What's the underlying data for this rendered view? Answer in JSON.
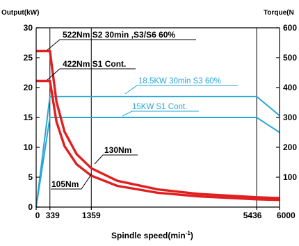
{
  "chart_data": {
    "type": "line",
    "y_left_title": "Output(kW)",
    "y_right_title": "Torque(N",
    "xlabel_main": "Spindle speed(min",
    "xlabel_sup": "-1",
    "xlabel_close": ")",
    "xlim": [
      0,
      6000
    ],
    "ylim_left": [
      0,
      30
    ],
    "ylim_right": [
      0,
      600
    ],
    "x_ticks": [
      {
        "value": 0,
        "label": "0"
      },
      {
        "value": 339,
        "label": "339"
      },
      {
        "value": 1359,
        "label": "1359"
      },
      {
        "value": 5436,
        "label": "5436"
      },
      {
        "value": 6000,
        "label": "6000"
      }
    ],
    "y_left_ticks": [
      0,
      5,
      10,
      15,
      20,
      25,
      30
    ],
    "y_right_ticks": [
      {
        "value": 100,
        "label": "100"
      },
      {
        "value": 200,
        "label": "200"
      },
      {
        "value": 300,
        "label": "300"
      },
      {
        "value": 400,
        "label": "400"
      },
      {
        "value": 500,
        "label": "500"
      },
      {
        "value": 600,
        "label": "600"
      }
    ],
    "series": [
      {
        "name": "18.5KW 30min S3 60%",
        "axis": "left",
        "color": "#29a6d6",
        "x": [
          0,
          339,
          5436,
          6000
        ],
        "y": [
          0,
          18.5,
          18.5,
          15.3
        ]
      },
      {
        "name": "15KW S1 Cont.",
        "axis": "left",
        "color": "#29a6d6",
        "x": [
          0,
          339,
          5436,
          6000
        ],
        "y": [
          0,
          15,
          15,
          12.5
        ]
      },
      {
        "name": "522Nm S2 30min ,S3/S6 60%",
        "axis": "right",
        "color": "#e02020",
        "x": [
          0,
          339,
          500,
          700,
          1000,
          1359,
          2000,
          3000,
          4000,
          5436,
          6000
        ],
        "y": [
          522,
          522,
          353,
          252,
          177,
          130,
          88,
          59,
          44,
          33,
          30
        ]
      },
      {
        "name": "422Nm S1 Cont.",
        "axis": "right",
        "color": "#e02020",
        "x": [
          0,
          339,
          500,
          700,
          1000,
          1359,
          2000,
          3000,
          4000,
          5436,
          6000
        ],
        "y": [
          422,
          422,
          286,
          204,
          143,
          105,
          71,
          48,
          36,
          26,
          24
        ]
      }
    ],
    "annotations": [
      {
        "text": "522Nm S2 30min ,S3/S6 60%",
        "color": "#000000"
      },
      {
        "text": "422Nm S1 Cont.",
        "color": "#000000"
      },
      {
        "text": "18.5KW 30min S3 60%",
        "color": "#29a6d6"
      },
      {
        "text": "15KW S1 Cont.",
        "color": "#29a6d6"
      },
      {
        "text": "130Nm",
        "color": "#000000"
      },
      {
        "text": "105Nm",
        "color": "#000000"
      }
    ],
    "grid": "vertical lines at 339, 1359, 5436"
  }
}
